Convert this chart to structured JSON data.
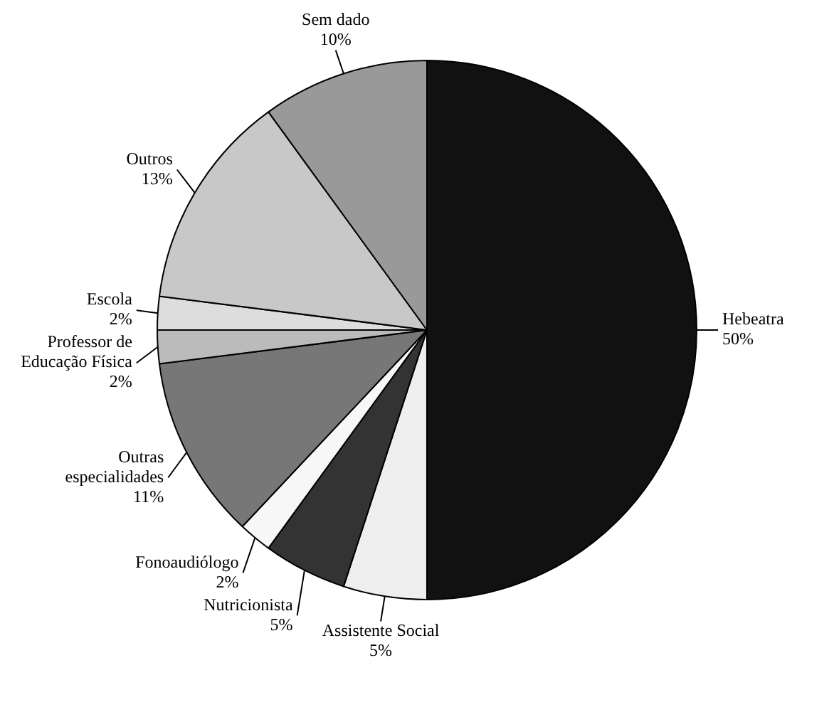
{
  "chart_data": {
    "type": "pie",
    "categories": [
      "Hebeatra",
      "Assistente Social",
      "Nutricionista",
      "Fonoaudiólogo",
      "Outras especialidades",
      "Professor de Educação Física",
      "Escola",
      "Outros",
      "Sem dado"
    ],
    "values": [
      50,
      5,
      5,
      2,
      11,
      2,
      2,
      13,
      10
    ],
    "value_labels": [
      "50%",
      "5%",
      "5%",
      "2%",
      "11%",
      "2%",
      "2%",
      "13%",
      "10%"
    ],
    "colors": [
      "#111111",
      "#eeeeee",
      "#333333",
      "#f7f7f7",
      "#777777",
      "#bbbbbb",
      "#dddddd",
      "#c8c8c8",
      "#999999"
    ],
    "legend": false
  }
}
